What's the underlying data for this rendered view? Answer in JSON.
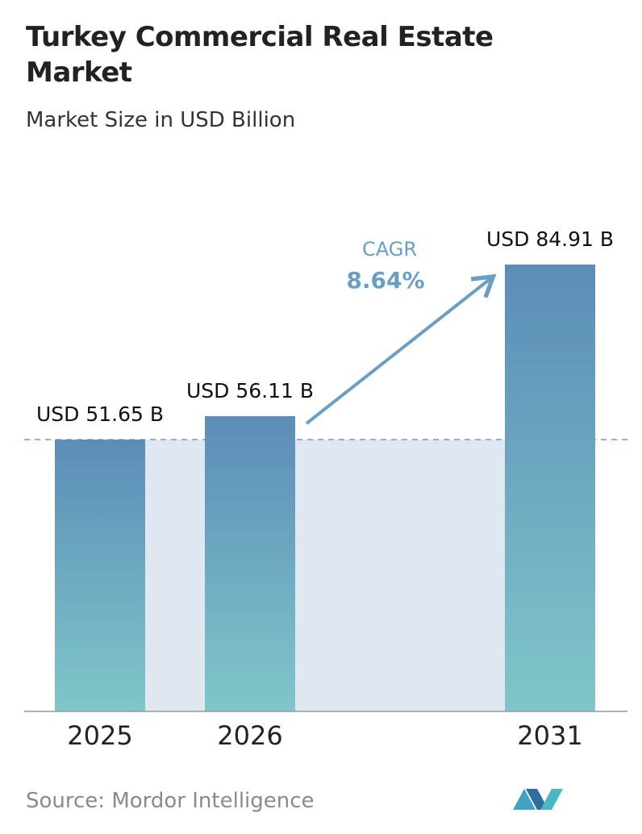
{
  "chart_data": {
    "type": "bar",
    "title": "Turkey Commercial Real Estate Market",
    "subtitle": "Market Size in USD Billion",
    "categories": [
      "2025",
      "2026",
      "2031"
    ],
    "values": [
      51.65,
      56.11,
      84.91
    ],
    "value_labels": [
      "USD 51.65 B",
      "USD 56.11 B",
      "USD 84.91 B"
    ],
    "cagr_label": "CAGR",
    "cagr_value": "8.64%",
    "source": "Source: Mordor Intelligence"
  }
}
